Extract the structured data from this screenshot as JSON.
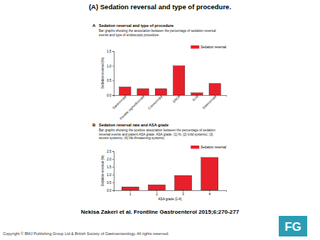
{
  "slide": {
    "title": "(A) Sedation reversal and type of procedure.",
    "citation": "Nekisa Zakeri et al. Frontline Gastroenterol 2015;6:270-277",
    "copyright": "Copyright © BMJ Publishing Group Ltd & British Society of Gastroenterology. All rights reserved.",
    "logo": "FG"
  },
  "chart_data": [
    {
      "type": "bar",
      "panel_label": "A",
      "title": "Sedation reversal and type of procedure",
      "subtitle": "Bar graphs showing the association between the percentage of sedation reversal events and type of endoscopic procedure.",
      "categories": [
        "Gastroscopy",
        "Flexible sigmoidoscopy",
        "Colonoscopy",
        "ERCP",
        "EUS",
        "Enteroscopy"
      ],
      "series": [
        {
          "name": "Sedation reversal",
          "color": "#e8202a",
          "values": [
            0.28,
            0.22,
            0.22,
            1.0,
            0.08,
            0.4
          ]
        }
      ],
      "y_label": "Sedation reversal (%)",
      "ylim": [
        0,
        1.5
      ],
      "yticks": [
        {
          "value": 0,
          "label": "0.0"
        },
        0.5,
        {
          "value": 1,
          "label": "1.0"
        },
        1.5
      ],
      "grid": false,
      "legend": "top right"
    },
    {
      "type": "bar",
      "panel_label": "B",
      "title": "Sedation reversal rate and ASA grade",
      "subtitle": "Bar graphs showing the positive association between the percentage of sedation reversal events and patient ASA grade. ASA grade: (1) fit; (2) mild systemic; (3) severe systemic; (4) life-threatening systemic.",
      "categories": [
        "1",
        "2",
        "3",
        "4"
      ],
      "series": [
        {
          "name": "Sedation reversal",
          "color": "#e8202a",
          "values": [
            0.22,
            0.35,
            0.95,
            2.1
          ]
        }
      ],
      "x_label": "ASA grade (1-4)",
      "y_label": "Sedation reversal (%)",
      "ylim": [
        0,
        2.5
      ],
      "yticks": [
        {
          "value": 0,
          "label": "0.0"
        },
        0.5,
        {
          "value": 1,
          "label": "1.0"
        },
        1.5,
        {
          "value": 2,
          "label": "2.0"
        },
        2.5
      ],
      "grid": false,
      "legend": "top right"
    }
  ]
}
